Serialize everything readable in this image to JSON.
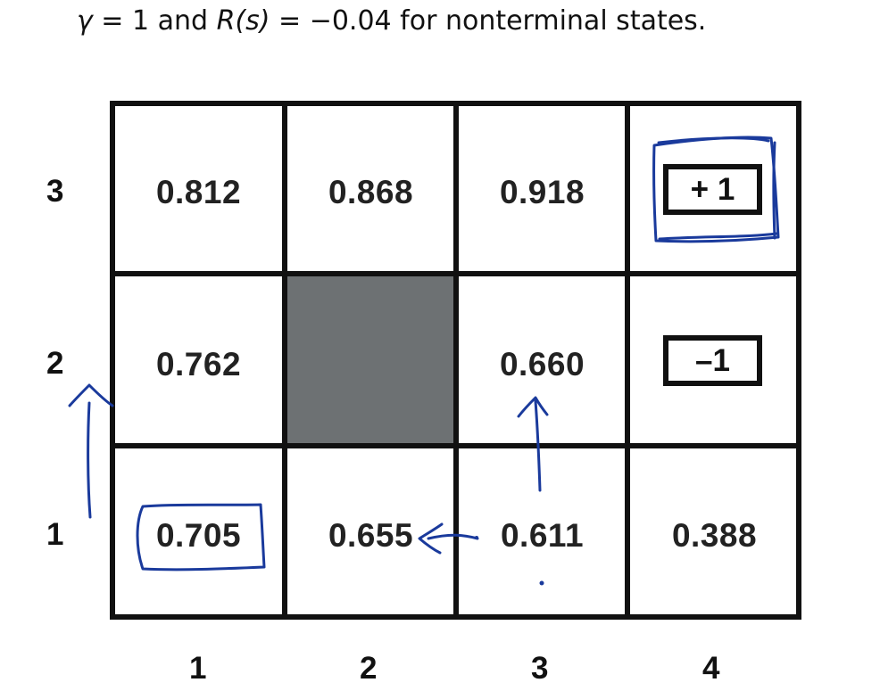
{
  "header": {
    "gamma_symbol": "γ",
    "gamma_eq": " = 1 and ",
    "reward_fn": "R",
    "reward_arg": "(s)",
    "reward_rest": " = −0.04 for nonterminal states."
  },
  "grid": {
    "row_labels": [
      "3",
      "2",
      "1"
    ],
    "col_labels": [
      "1",
      "2",
      "3",
      "4"
    ],
    "cells": {
      "r3c1": "0.812",
      "r3c2": "0.868",
      "r3c3": "0.918",
      "r2c1": "0.762",
      "r2c3": "0.660",
      "r1c1": "0.705",
      "r1c2": "0.655",
      "r1c3": "0.611",
      "r1c4": "0.388"
    },
    "terminals": {
      "positive": "+ 1",
      "negative": "–1"
    }
  },
  "colors": {
    "ink": "#1a3a9c",
    "wall": "#6d7173",
    "grid_line": "#111111"
  }
}
